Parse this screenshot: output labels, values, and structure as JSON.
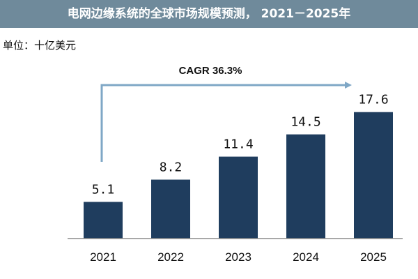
{
  "title": "电网边缘系统的全球市场规模预测， 2021－2025年",
  "unit": "单位：十亿美元",
  "colors": {
    "title_bar": "#6F8A9B",
    "bar": "#1F3D5E",
    "arrow": "#7FA7C6",
    "axis": "#8C8C8C"
  },
  "chart_data": {
    "type": "bar",
    "categories": [
      "2021",
      "2022",
      "2023",
      "2024",
      "2025"
    ],
    "values": [
      5.1,
      8.2,
      11.4,
      14.5,
      17.6
    ],
    "value_labels": [
      "5.1",
      "8.2",
      "11.4",
      "14.5",
      "17.6"
    ],
    "ylim": [
      0,
      20
    ],
    "grid": false,
    "annotation": "CAGR 36.3%"
  }
}
